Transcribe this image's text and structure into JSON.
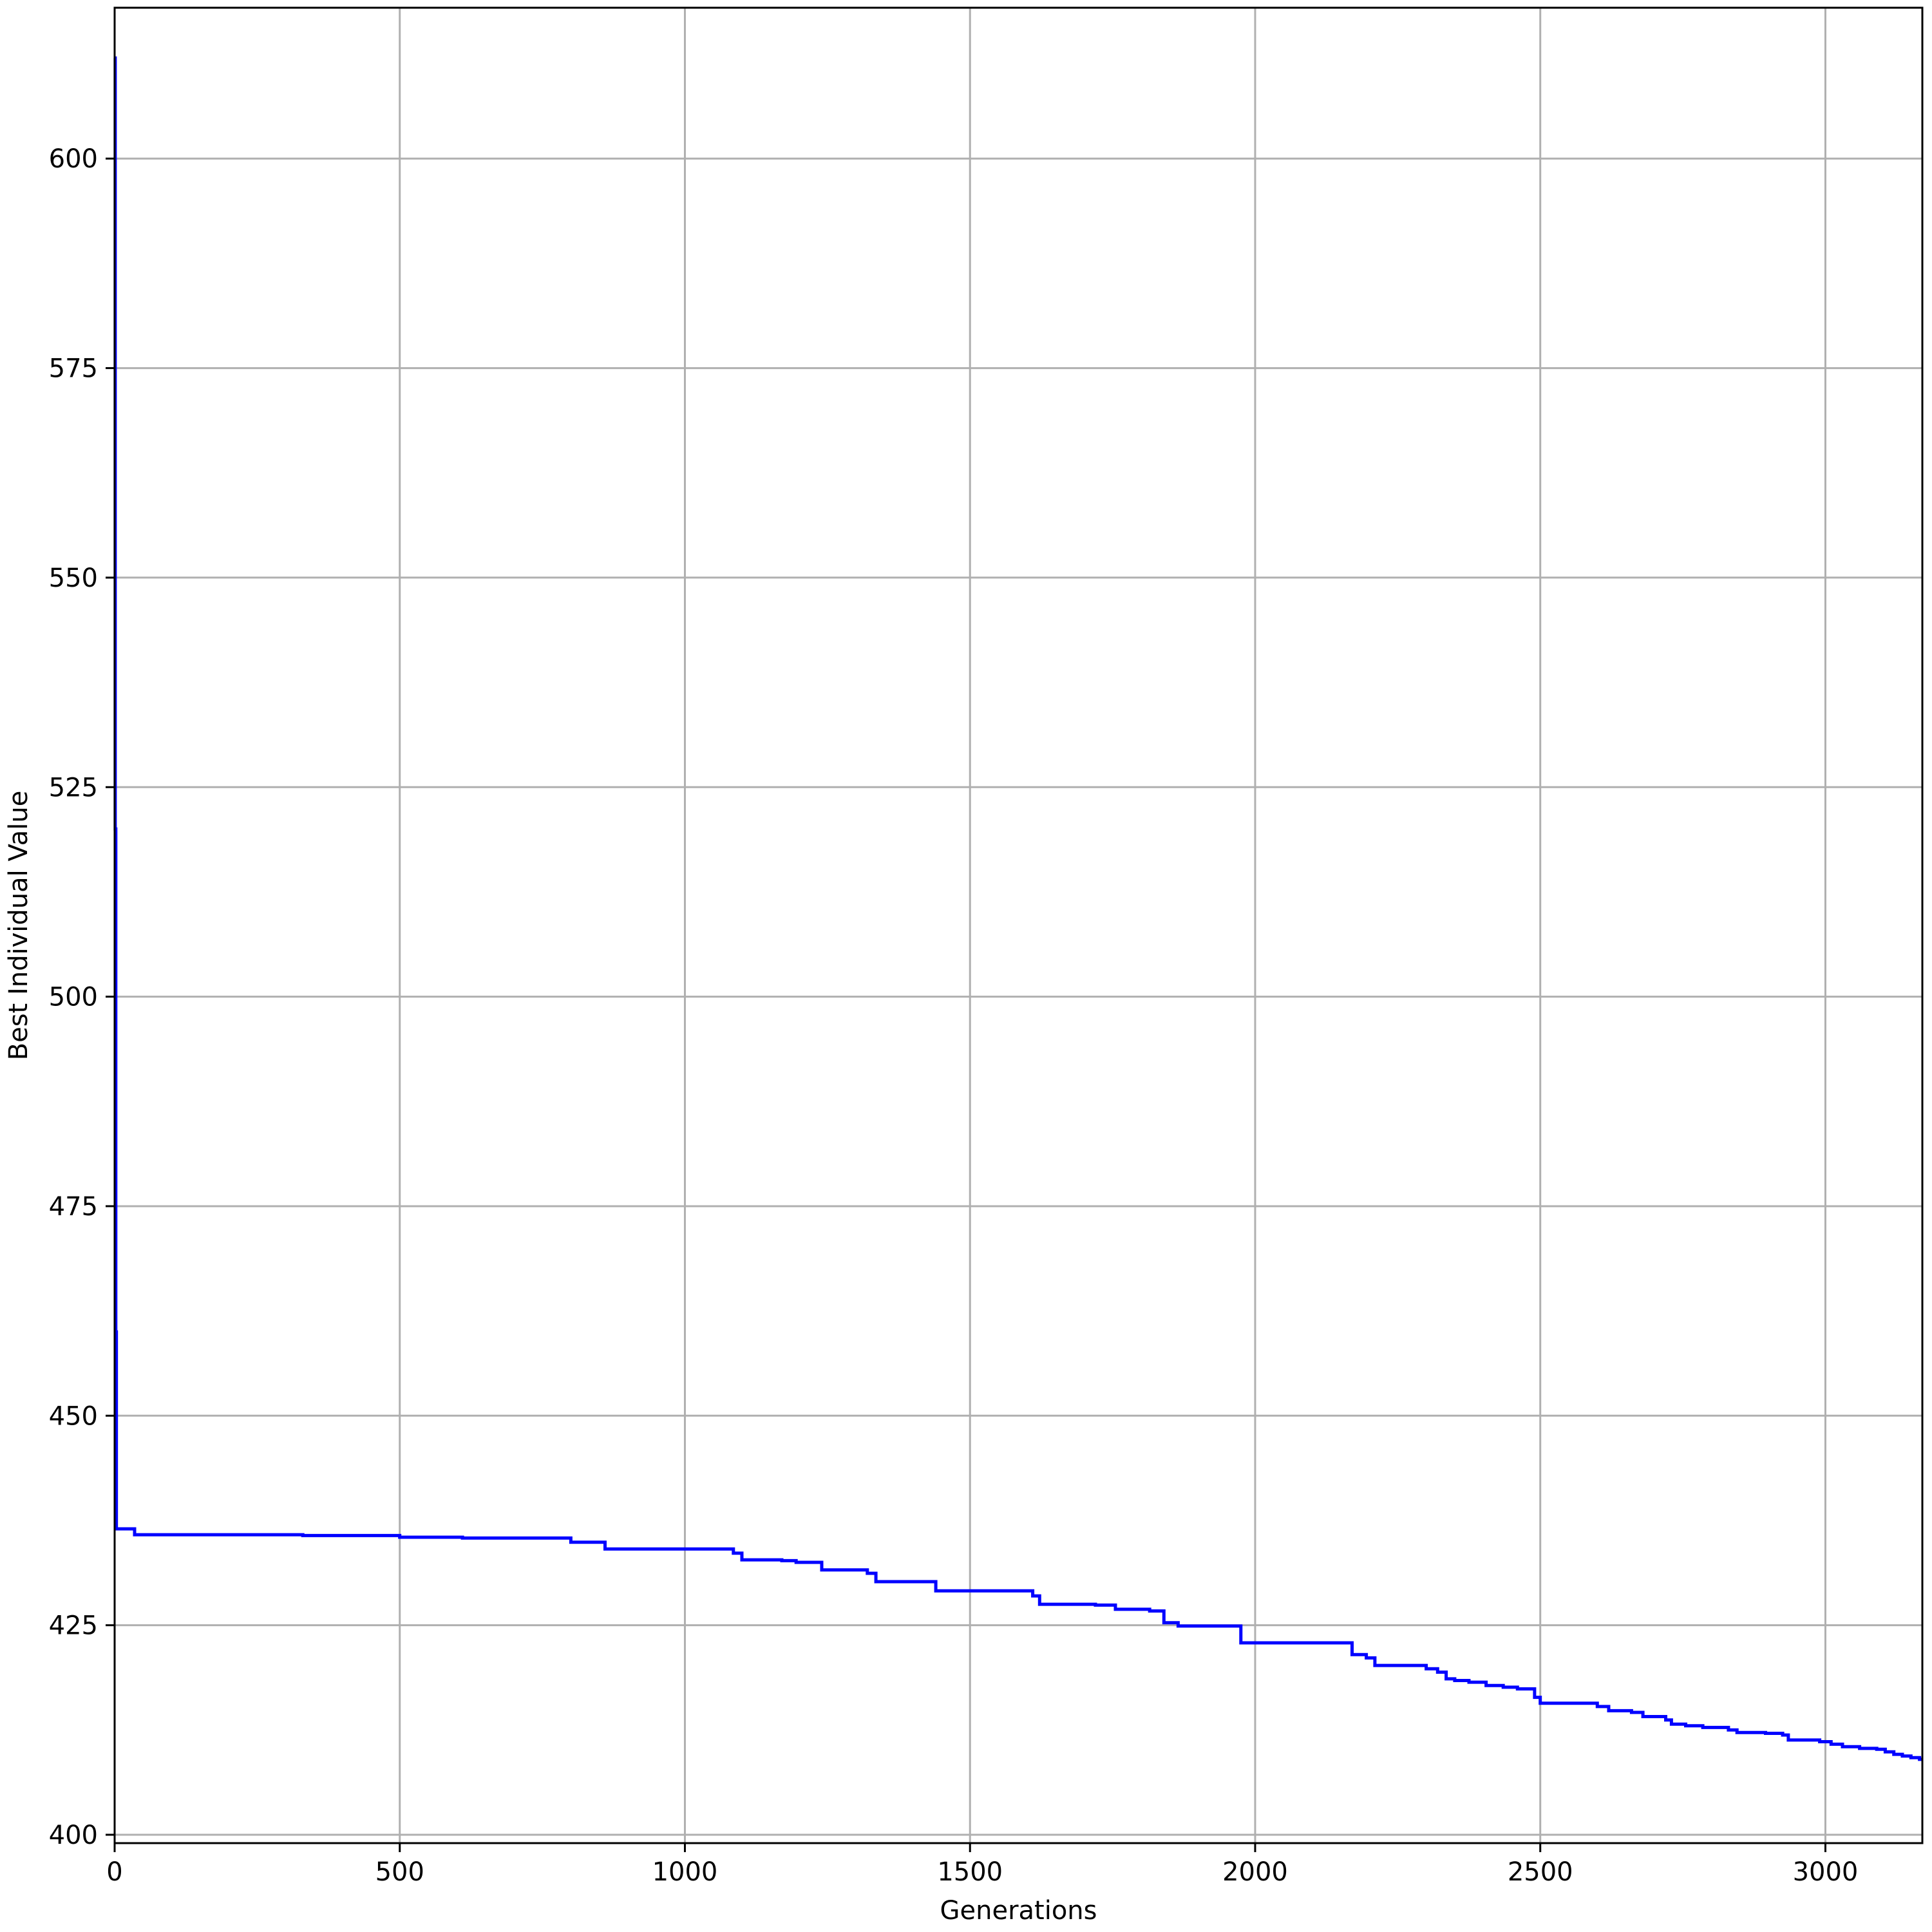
{
  "chart_data": {
    "type": "line",
    "title": "",
    "xlabel": "Generations",
    "ylabel": "Best Individual Value",
    "xlim": [
      0,
      3170
    ],
    "ylim": [
      399,
      618
    ],
    "xticks": [
      0,
      500,
      1000,
      1500,
      2000,
      2500,
      3000
    ],
    "yticks": [
      400,
      425,
      450,
      475,
      500,
      525,
      550,
      575,
      600
    ],
    "grid": true,
    "legend": "none",
    "series_color": "#0000ff",
    "grid_color": "#b0b0b0",
    "series": [
      {
        "step": "post",
        "x": [
          0,
          1,
          2,
          3,
          35,
          330,
          500,
          610,
          800,
          860,
          1085,
          1100,
          1170,
          1195,
          1240,
          1320,
          1335,
          1440,
          1610,
          1622,
          1720,
          1755,
          1815,
          1840,
          1865,
          1975,
          2170,
          2195,
          2210,
          2300,
          2320,
          2335,
          2350,
          2375,
          2405,
          2435,
          2460,
          2490,
          2500,
          2545,
          2600,
          2620,
          2660,
          2680,
          2720,
          2730,
          2755,
          2785,
          2830,
          2845,
          2895,
          2925,
          2935,
          2990,
          3010,
          3030,
          3060,
          3090,
          3105,
          3120,
          3135,
          3150,
          3165
        ],
        "y": [
          612,
          520,
          460,
          436.5,
          435.8,
          435.7,
          435.5,
          435.4,
          434.9,
          434.1,
          433.6,
          432.8,
          432.7,
          432.5,
          431.6,
          431.2,
          430.2,
          429.1,
          428.5,
          427.5,
          427.4,
          426.9,
          426.7,
          425.3,
          424.9,
          422.9,
          421.5,
          421.1,
          420.2,
          419.8,
          419.4,
          418.6,
          418.4,
          418.2,
          417.8,
          417.6,
          417.4,
          416.4,
          415.7,
          415.7,
          415.3,
          414.8,
          414.6,
          414.1,
          413.7,
          413.2,
          413,
          412.8,
          412.5,
          412.2,
          412.1,
          411.9,
          411.3,
          411.1,
          410.8,
          410.5,
          410.3,
          410.2,
          409.9,
          409.6,
          409.4,
          409.2,
          409
        ]
      }
    ]
  }
}
